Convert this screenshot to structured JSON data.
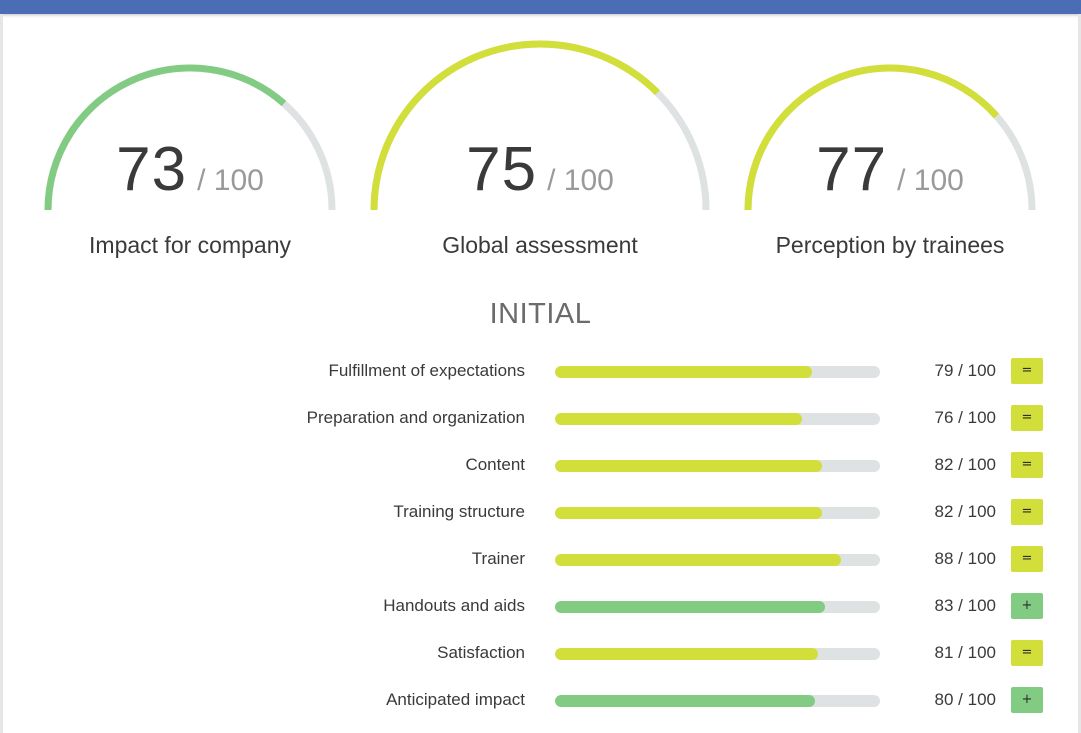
{
  "colors": {
    "header": "#4a6db5",
    "green": "#82cb82",
    "yellow": "#d2de3a",
    "track": "#dfe2e2"
  },
  "gauges": [
    {
      "score": "73",
      "max": "/ 100",
      "value": 0.73,
      "label": "Impact for company",
      "color": "#82cb82"
    },
    {
      "score": "75",
      "max": "/ 100",
      "value": 0.75,
      "label": "Global assessment",
      "color": "#d2de3a"
    },
    {
      "score": "77",
      "max": "/ 100",
      "value": 0.77,
      "label": "Perception by trainees",
      "color": "#d2de3a"
    }
  ],
  "section_title": "INITIAL",
  "criteria": [
    {
      "label": "Fulfillment of expectations",
      "score": "79 / 100",
      "value": 0.79,
      "badge": "=",
      "color": "#d2de3a"
    },
    {
      "label": "Preparation and organization",
      "score": "76 / 100",
      "value": 0.76,
      "badge": "=",
      "color": "#d2de3a"
    },
    {
      "label": "Content",
      "score": "82 / 100",
      "value": 0.82,
      "badge": "=",
      "color": "#d2de3a"
    },
    {
      "label": "Training structure",
      "score": "82 / 100",
      "value": 0.82,
      "badge": "=",
      "color": "#d2de3a"
    },
    {
      "label": "Trainer",
      "score": "88 / 100",
      "value": 0.88,
      "badge": "=",
      "color": "#d2de3a"
    },
    {
      "label": "Handouts and aids",
      "score": "83 / 100",
      "value": 0.83,
      "badge": "+",
      "color": "#82cb82"
    },
    {
      "label": "Satisfaction",
      "score": "81 / 100",
      "value": 0.81,
      "badge": "=",
      "color": "#d2de3a"
    },
    {
      "label": "Anticipated impact",
      "score": "80 / 100",
      "value": 0.8,
      "badge": "+",
      "color": "#82cb82"
    }
  ]
}
